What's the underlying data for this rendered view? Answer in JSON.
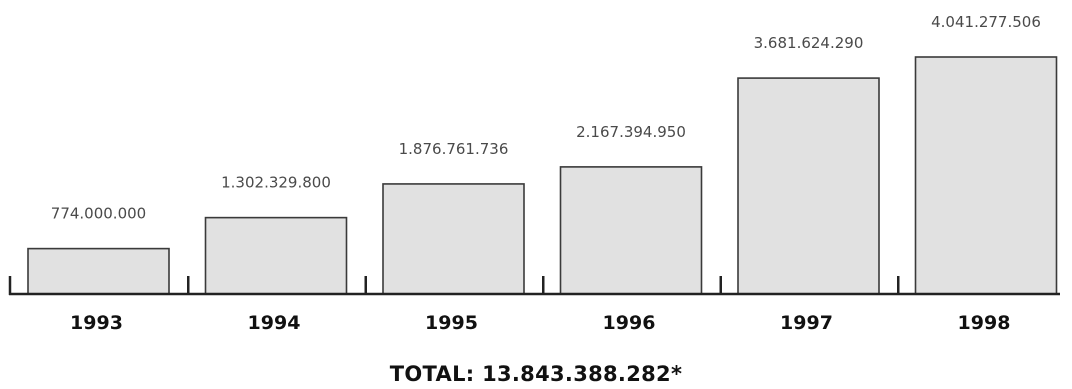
{
  "chart_data": {
    "type": "bar",
    "categories": [
      "1993",
      "1994",
      "1995",
      "1996",
      "1997",
      "1998"
    ],
    "values": [
      774000000,
      1302329800,
      1876761736,
      2167394950,
      3681624290,
      4041277506
    ],
    "value_labels": [
      "774.000.000",
      "1.302.329.800",
      "1.876.761.736",
      "2.167.394.950",
      "3.681.624.290",
      "4.041.277.506"
    ],
    "ylim": [
      0,
      4041277506
    ],
    "grid": false,
    "total_text": "TOTAL: 13.843.388.282*"
  },
  "colors": {
    "bar_fill": "#e1e1e1",
    "bar_stroke": "#3a3a3a",
    "axis": "#222222"
  }
}
